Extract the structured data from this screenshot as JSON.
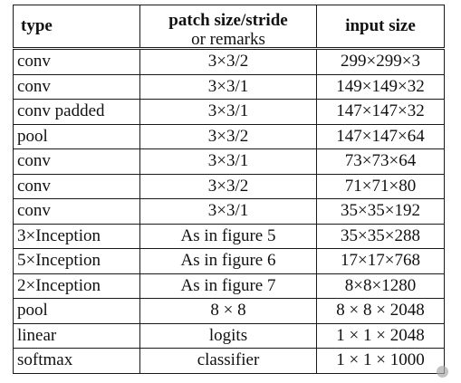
{
  "table": {
    "headers": {
      "type": "type",
      "patch_line1": "patch size/stride",
      "patch_line2": "or remarks",
      "input": "input size"
    },
    "rows": [
      {
        "type": "conv",
        "patch": "3×3/2",
        "input": "299×299×3"
      },
      {
        "type": "conv",
        "patch": "3×3/1",
        "input": "149×149×32"
      },
      {
        "type": "conv padded",
        "patch": "3×3/1",
        "input": "147×147×32"
      },
      {
        "type": "pool",
        "patch": "3×3/2",
        "input": "147×147×64"
      },
      {
        "type": "conv",
        "patch": "3×3/1",
        "input": "73×73×64"
      },
      {
        "type": "conv",
        "patch": "3×3/2",
        "input": "71×71×80"
      },
      {
        "type": "conv",
        "patch": "3×3/1",
        "input": "35×35×192"
      },
      {
        "type": "3×Inception",
        "patch": "As in figure 5",
        "input": "35×35×288"
      },
      {
        "type": "5×Inception",
        "patch": "As in figure 6",
        "input": "17×17×768"
      },
      {
        "type": "2×Inception",
        "patch": "As in figure 7",
        "input": "8×8×1280"
      },
      {
        "type": "pool",
        "patch": "8 × 8",
        "input": "8 × 8 × 2048"
      },
      {
        "type": "linear",
        "patch": "logits",
        "input": "1 × 1 × 2048"
      },
      {
        "type": "softmax",
        "patch": "classifier",
        "input": "1 × 1 × 1000"
      }
    ]
  },
  "watermark": {
    "icon": "wechat-icon"
  }
}
